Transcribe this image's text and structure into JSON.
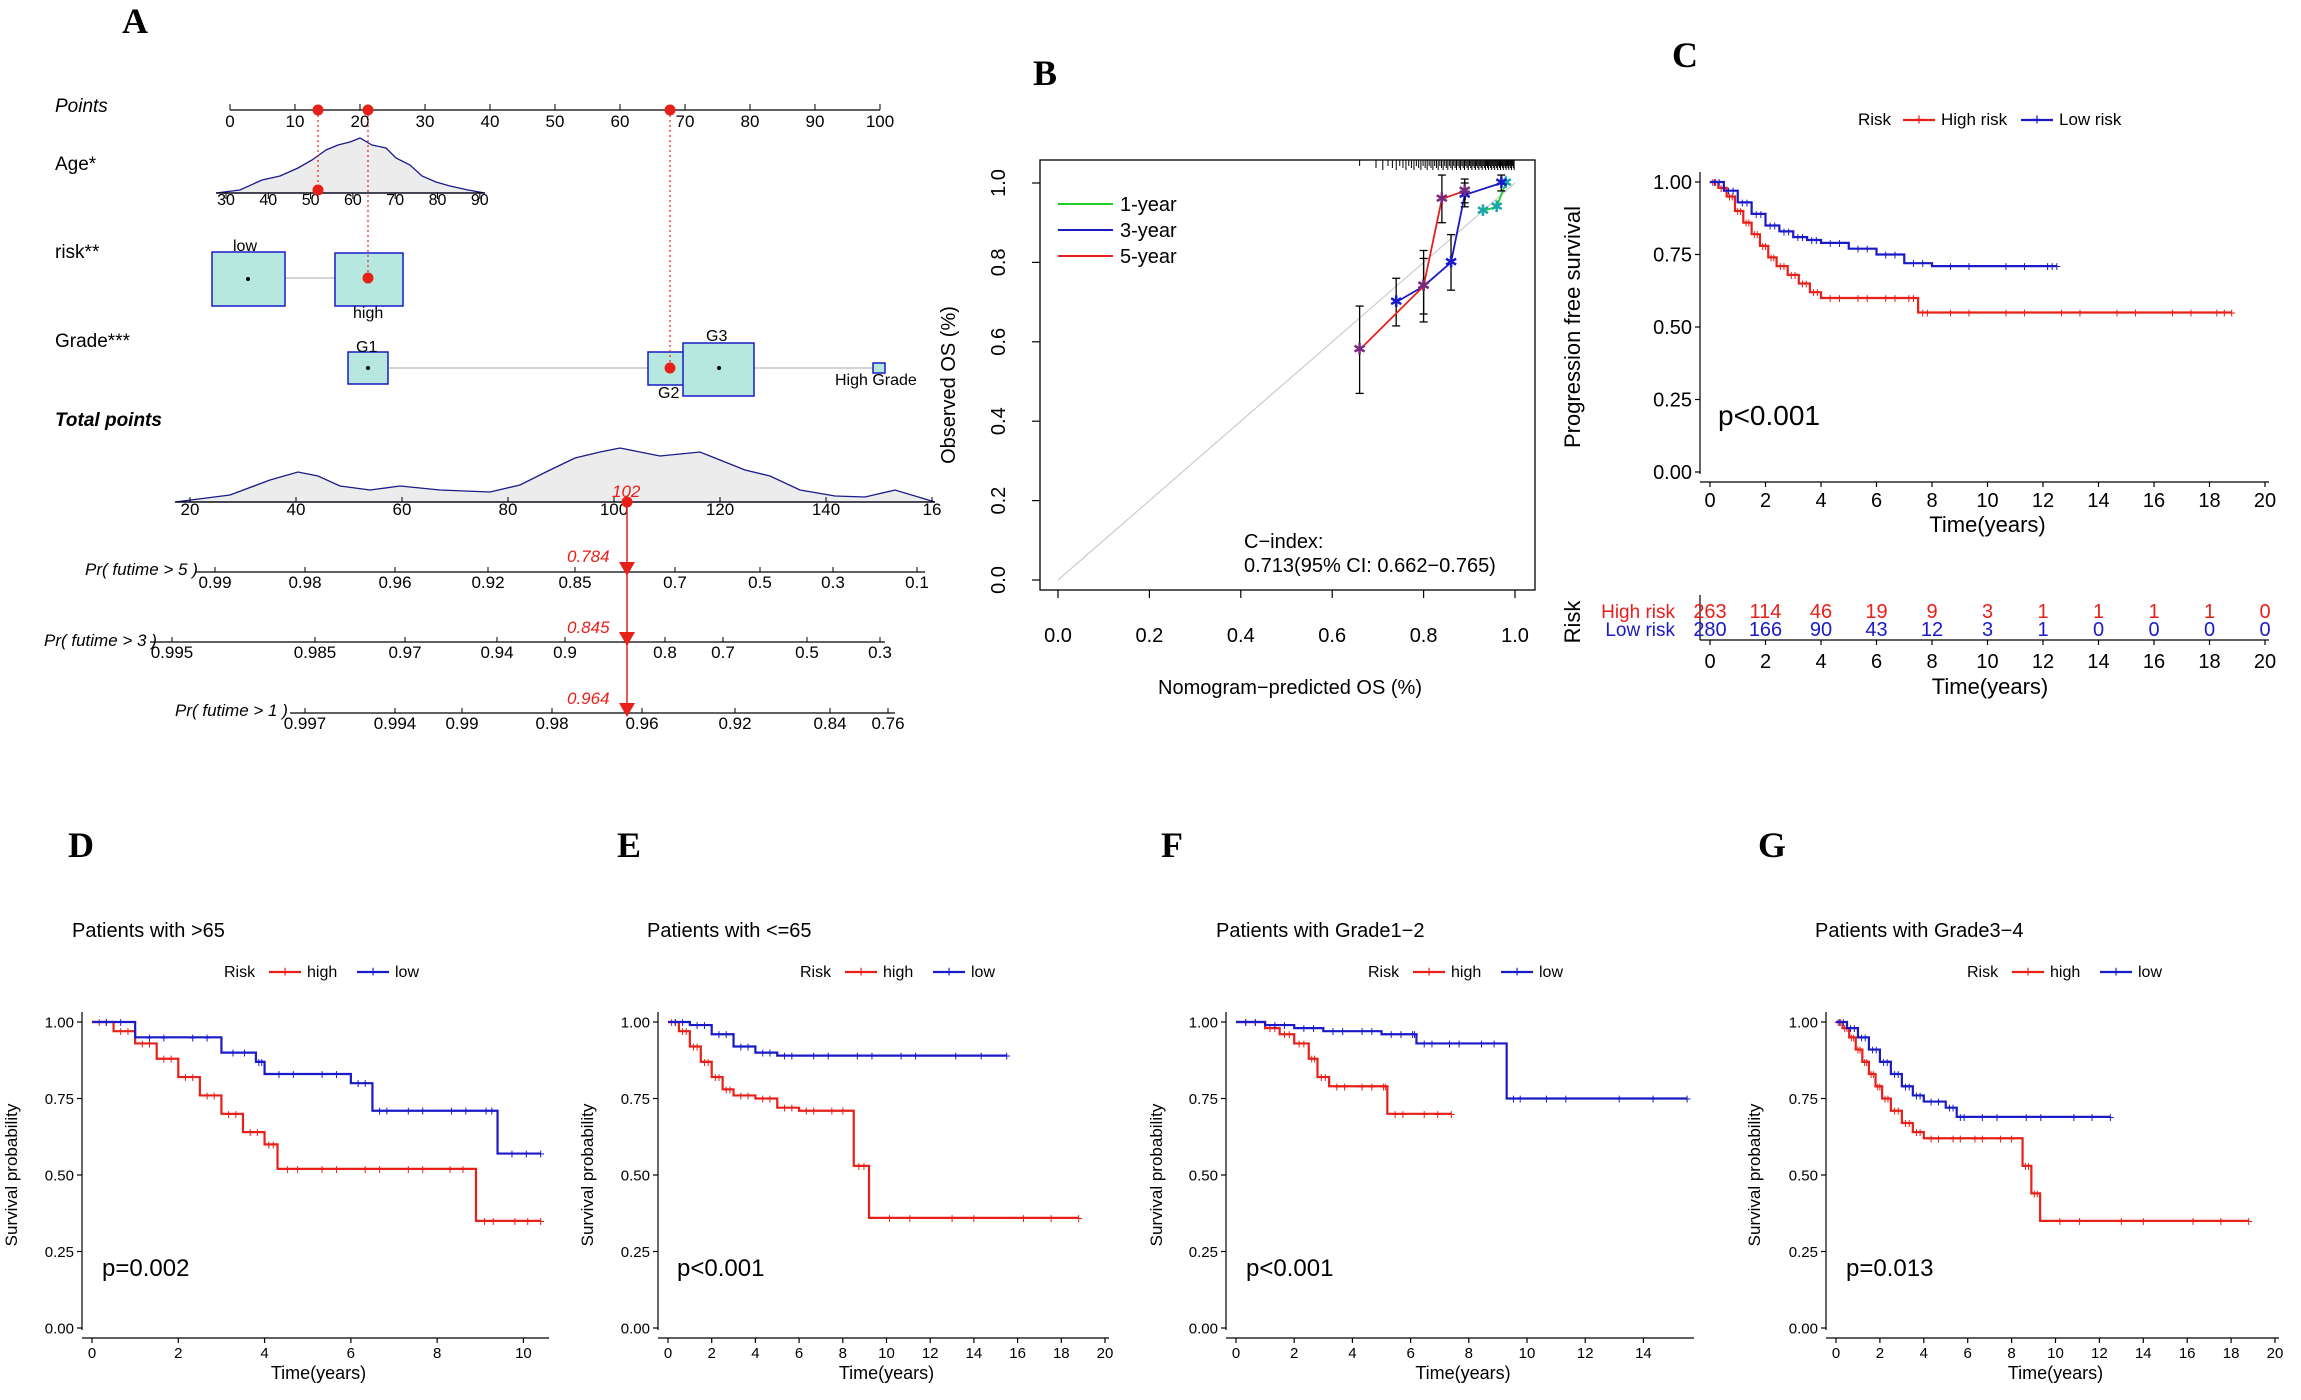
{
  "colors": {
    "red": "#e8201a",
    "blue": "#1a1ac8",
    "green": "#22cc22",
    "navy": "#1a1a8c",
    "box_fill": "#b6e8e0",
    "density_fill": "#ececec"
  },
  "panel_labels": [
    "A",
    "B",
    "C",
    "D",
    "E",
    "F",
    "G"
  ],
  "nomogram": {
    "rows": {
      "points": "Points",
      "age": "Age*",
      "risk": "risk**",
      "grade": "Grade***",
      "total": "Total points",
      "pr5": "Pr( futime > 5 )",
      "pr3": "Pr( futime > 3 )",
      "pr1": "Pr( futime > 1 )"
    },
    "points_ticks": [
      "0",
      "10",
      "20",
      "30",
      "40",
      "50",
      "60",
      "70",
      "80",
      "90",
      "100"
    ],
    "age_ticks": [
      "30",
      "40",
      "50",
      "60",
      "70",
      "80",
      "90"
    ],
    "risk_levels": {
      "low": "low",
      "high": "high"
    },
    "grade_levels": {
      "g1": "G1",
      "g2": "G2",
      "g3": "G3",
      "hg": "High Grade"
    },
    "total_ticks": [
      "20",
      "40",
      "60",
      "80",
      "100",
      "120",
      "140",
      "16"
    ],
    "total_value": "102",
    "pr5_ticks": [
      "0.99",
      "0.98",
      "0.96",
      "0.92",
      "0.85",
      "0.7",
      "0.5",
      "0.3",
      "0.1"
    ],
    "pr3_ticks": [
      "0.995",
      "0.985",
      "0.97",
      "0.94",
      "0.9",
      "0.8",
      "0.7",
      "0.5",
      "0.3"
    ],
    "pr1_ticks": [
      "0.997",
      "0.994",
      "0.99",
      "0.98",
      "0.96",
      "0.92",
      "0.84",
      "0.76"
    ],
    "pr5_value": "0.784",
    "pr3_value": "0.845",
    "pr1_value": "0.964"
  },
  "chart_data": [
    {
      "panel": "B",
      "type": "line",
      "xlabel": "Nomogram−predicted OS (%)",
      "ylabel": "Observed OS (%)",
      "xlim": [
        0,
        1
      ],
      "ylim": [
        0,
        1
      ],
      "x_ticks": [
        "0.0",
        "0.2",
        "0.4",
        "0.6",
        "0.8",
        "1.0"
      ],
      "y_ticks": [
        "0.0",
        "0.2",
        "0.4",
        "0.6",
        "0.8",
        "1.0"
      ],
      "legend": [
        "1-year",
        "3-year",
        "5-year"
      ],
      "legend_position": "top-left",
      "annotation": [
        "C−index:",
        "0.713(95% CI: 0.662−0.765)"
      ],
      "series": [
        {
          "name": "1-year",
          "color": "green",
          "x": [
            0.93,
            0.96,
            0.98
          ],
          "y": [
            0.93,
            0.94,
            1.0
          ]
        },
        {
          "name": "3-year",
          "color": "blue",
          "x": [
            0.74,
            0.8,
            0.86,
            0.89,
            0.97
          ],
          "y": [
            0.7,
            0.74,
            0.8,
            0.97,
            1.0
          ],
          "err": [
            0.06,
            0.07,
            0.07,
            0.03,
            0.02
          ]
        },
        {
          "name": "5-year",
          "color": "red",
          "x": [
            0.66,
            0.8,
            0.84,
            0.89
          ],
          "y": [
            0.58,
            0.74,
            0.96,
            0.98
          ],
          "err": [
            0.11,
            0.09,
            0.06,
            0.03
          ]
        }
      ]
    },
    {
      "panel": "C",
      "type": "line",
      "xlabel": "Time(years)",
      "ylabel": "Progression free survival",
      "x_ticks": [
        "0",
        "2",
        "4",
        "6",
        "8",
        "10",
        "12",
        "14",
        "16",
        "18",
        "20"
      ],
      "y_ticks": [
        "0.00",
        "0.25",
        "0.50",
        "0.75",
        "1.00"
      ],
      "xlim": [
        0,
        20
      ],
      "ylim": [
        0,
        1
      ],
      "legend_title": "Risk",
      "legend": [
        "High risk",
        "Low risk"
      ],
      "legend_position": "top",
      "pvalue": "p<0.001",
      "series": [
        {
          "name": "High risk",
          "color": "red",
          "x": [
            0,
            0.3,
            0.6,
            0.9,
            1.2,
            1.5,
            1.8,
            2.1,
            2.4,
            2.8,
            3.2,
            3.6,
            4,
            5,
            6,
            7,
            7.5,
            8,
            10,
            12,
            14,
            16,
            18,
            18.8
          ],
          "y": [
            1,
            0.98,
            0.95,
            0.9,
            0.86,
            0.82,
            0.78,
            0.74,
            0.71,
            0.68,
            0.65,
            0.62,
            0.6,
            0.6,
            0.6,
            0.6,
            0.55,
            0.55,
            0.55,
            0.55,
            0.55,
            0.55,
            0.55,
            0.55
          ]
        },
        {
          "name": "Low risk",
          "color": "blue",
          "x": [
            0,
            0.5,
            1,
            1.5,
            2,
            2.5,
            3,
            3.5,
            4,
            5,
            6,
            7,
            8,
            10,
            12,
            12.5
          ],
          "y": [
            1,
            0.97,
            0.93,
            0.89,
            0.85,
            0.83,
            0.81,
            0.8,
            0.79,
            0.77,
            0.75,
            0.72,
            0.71,
            0.71,
            0.71,
            0.71
          ]
        }
      ],
      "risk_table": {
        "title": "Risk",
        "xlabel": "Time(years)",
        "rows": [
          {
            "label": "High risk",
            "color": "red",
            "values": [
              "263",
              "114",
              "46",
              "19",
              "9",
              "3",
              "1",
              "1",
              "1",
              "1",
              "0"
            ]
          },
          {
            "label": "Low risk",
            "color": "blue",
            "values": [
              "280",
              "166",
              "90",
              "43",
              "12",
              "3",
              "1",
              "0",
              "0",
              "0",
              "0"
            ]
          }
        ]
      }
    },
    {
      "panel": "D",
      "type": "line",
      "title": "Patients with >65",
      "xlabel": "Time(years)",
      "ylabel": "Survival probability",
      "x_ticks": [
        "0",
        "2",
        "4",
        "6",
        "8",
        "10"
      ],
      "y_ticks": [
        "0.00",
        "0.25",
        "0.50",
        "0.75",
        "1.00"
      ],
      "xlim": [
        0,
        10.5
      ],
      "ylim": [
        0,
        1
      ],
      "legend_title": "Risk",
      "legend": [
        "high",
        "low"
      ],
      "pvalue": "p=0.002",
      "series": [
        {
          "name": "high",
          "color": "red",
          "x": [
            0,
            0.5,
            1,
            1.5,
            2,
            2.5,
            3,
            3.5,
            4,
            4.3,
            5,
            6,
            7,
            8,
            8.9,
            9.5,
            10.4
          ],
          "y": [
            1,
            0.97,
            0.93,
            0.88,
            0.82,
            0.76,
            0.7,
            0.64,
            0.6,
            0.52,
            0.52,
            0.52,
            0.52,
            0.52,
            0.35,
            0.35,
            0.35
          ]
        },
        {
          "name": "low",
          "color": "blue",
          "x": [
            0,
            1,
            2,
            3,
            3.8,
            4,
            5,
            6,
            6.5,
            7,
            8,
            9,
            9.4,
            10.4
          ],
          "y": [
            1,
            0.95,
            0.95,
            0.9,
            0.87,
            0.83,
            0.83,
            0.8,
            0.71,
            0.71,
            0.71,
            0.71,
            0.57,
            0.57
          ]
        }
      ]
    },
    {
      "panel": "E",
      "type": "line",
      "title": "Patients with <=65",
      "xlabel": "Time(years)",
      "ylabel": "Survival probability",
      "x_ticks": [
        "0",
        "2",
        "4",
        "6",
        "8",
        "10",
        "12",
        "14",
        "16",
        "18",
        "20"
      ],
      "y_ticks": [
        "0.00",
        "0.25",
        "0.50",
        "0.75",
        "1.00"
      ],
      "xlim": [
        0,
        20
      ],
      "ylim": [
        0,
        1
      ],
      "legend_title": "Risk",
      "legend": [
        "high",
        "low"
      ],
      "pvalue": "p<0.001",
      "series": [
        {
          "name": "high",
          "color": "red",
          "x": [
            0,
            0.5,
            1,
            1.5,
            2,
            2.5,
            3,
            4,
            5,
            6,
            7,
            8.5,
            9.2,
            12,
            15,
            18.8
          ],
          "y": [
            1,
            0.97,
            0.92,
            0.87,
            0.82,
            0.78,
            0.76,
            0.75,
            0.72,
            0.71,
            0.71,
            0.53,
            0.36,
            0.36,
            0.36,
            0.36
          ]
        },
        {
          "name": "low",
          "color": "blue",
          "x": [
            0,
            1,
            2,
            3,
            4,
            5,
            6,
            8,
            10,
            12,
            15.5
          ],
          "y": [
            1,
            0.99,
            0.96,
            0.92,
            0.9,
            0.89,
            0.89,
            0.89,
            0.89,
            0.89,
            0.89
          ]
        }
      ]
    },
    {
      "panel": "F",
      "type": "line",
      "title": "Patients with Grade1−2",
      "xlabel": "Time(years)",
      "ylabel": "Survival probability",
      "x_ticks": [
        "0",
        "2",
        "4",
        "6",
        "8",
        "10",
        "12",
        "14"
      ],
      "y_ticks": [
        "0.00",
        "0.25",
        "0.50",
        "0.75",
        "1.00"
      ],
      "xlim": [
        0,
        15.6
      ],
      "ylim": [
        0,
        1
      ],
      "legend_title": "Risk",
      "legend": [
        "high",
        "low"
      ],
      "pvalue": "p<0.001",
      "series": [
        {
          "name": "high",
          "color": "red",
          "x": [
            0,
            1,
            1.5,
            2,
            2.5,
            2.8,
            3.2,
            4,
            5,
            5.2,
            6,
            7.4
          ],
          "y": [
            1,
            0.98,
            0.96,
            0.93,
            0.88,
            0.82,
            0.79,
            0.79,
            0.79,
            0.7,
            0.7,
            0.7
          ]
        },
        {
          "name": "low",
          "color": "blue",
          "x": [
            0,
            1,
            2,
            3,
            4,
            5,
            6,
            6.2,
            7,
            8,
            9.3,
            10,
            12,
            15.5
          ],
          "y": [
            1,
            0.99,
            0.98,
            0.97,
            0.97,
            0.96,
            0.96,
            0.93,
            0.93,
            0.93,
            0.75,
            0.75,
            0.75,
            0.75
          ]
        }
      ]
    },
    {
      "panel": "G",
      "type": "line",
      "title": "Patients with Grade3−4",
      "xlabel": "Time(years)",
      "ylabel": "Survival probability",
      "x_ticks": [
        "0",
        "2",
        "4",
        "6",
        "8",
        "10",
        "12",
        "14",
        "16",
        "18",
        "20"
      ],
      "y_ticks": [
        "0.00",
        "0.25",
        "0.50",
        "0.75",
        "1.00"
      ],
      "xlim": [
        0,
        20
      ],
      "ylim": [
        0,
        1
      ],
      "legend_title": "Risk",
      "legend": [
        "high",
        "low"
      ],
      "pvalue": "p=0.013",
      "series": [
        {
          "name": "high",
          "color": "red",
          "x": [
            0,
            0.3,
            0.6,
            0.9,
            1.2,
            1.5,
            1.8,
            2.1,
            2.5,
            3,
            3.5,
            4,
            5,
            6,
            7,
            8.5,
            8.9,
            9.3,
            12,
            15,
            18.8
          ],
          "y": [
            1,
            0.98,
            0.95,
            0.91,
            0.87,
            0.83,
            0.79,
            0.75,
            0.71,
            0.67,
            0.64,
            0.62,
            0.62,
            0.62,
            0.62,
            0.53,
            0.44,
            0.35,
            0.35,
            0.35,
            0.35
          ]
        },
        {
          "name": "low",
          "color": "blue",
          "x": [
            0,
            0.5,
            1,
            1.5,
            2,
            2.5,
            3,
            3.5,
            4,
            5,
            5.5,
            6,
            8,
            10,
            12.5
          ],
          "y": [
            1,
            0.98,
            0.95,
            0.91,
            0.87,
            0.83,
            0.79,
            0.76,
            0.74,
            0.72,
            0.69,
            0.69,
            0.69,
            0.69,
            0.69
          ]
        }
      ]
    }
  ]
}
